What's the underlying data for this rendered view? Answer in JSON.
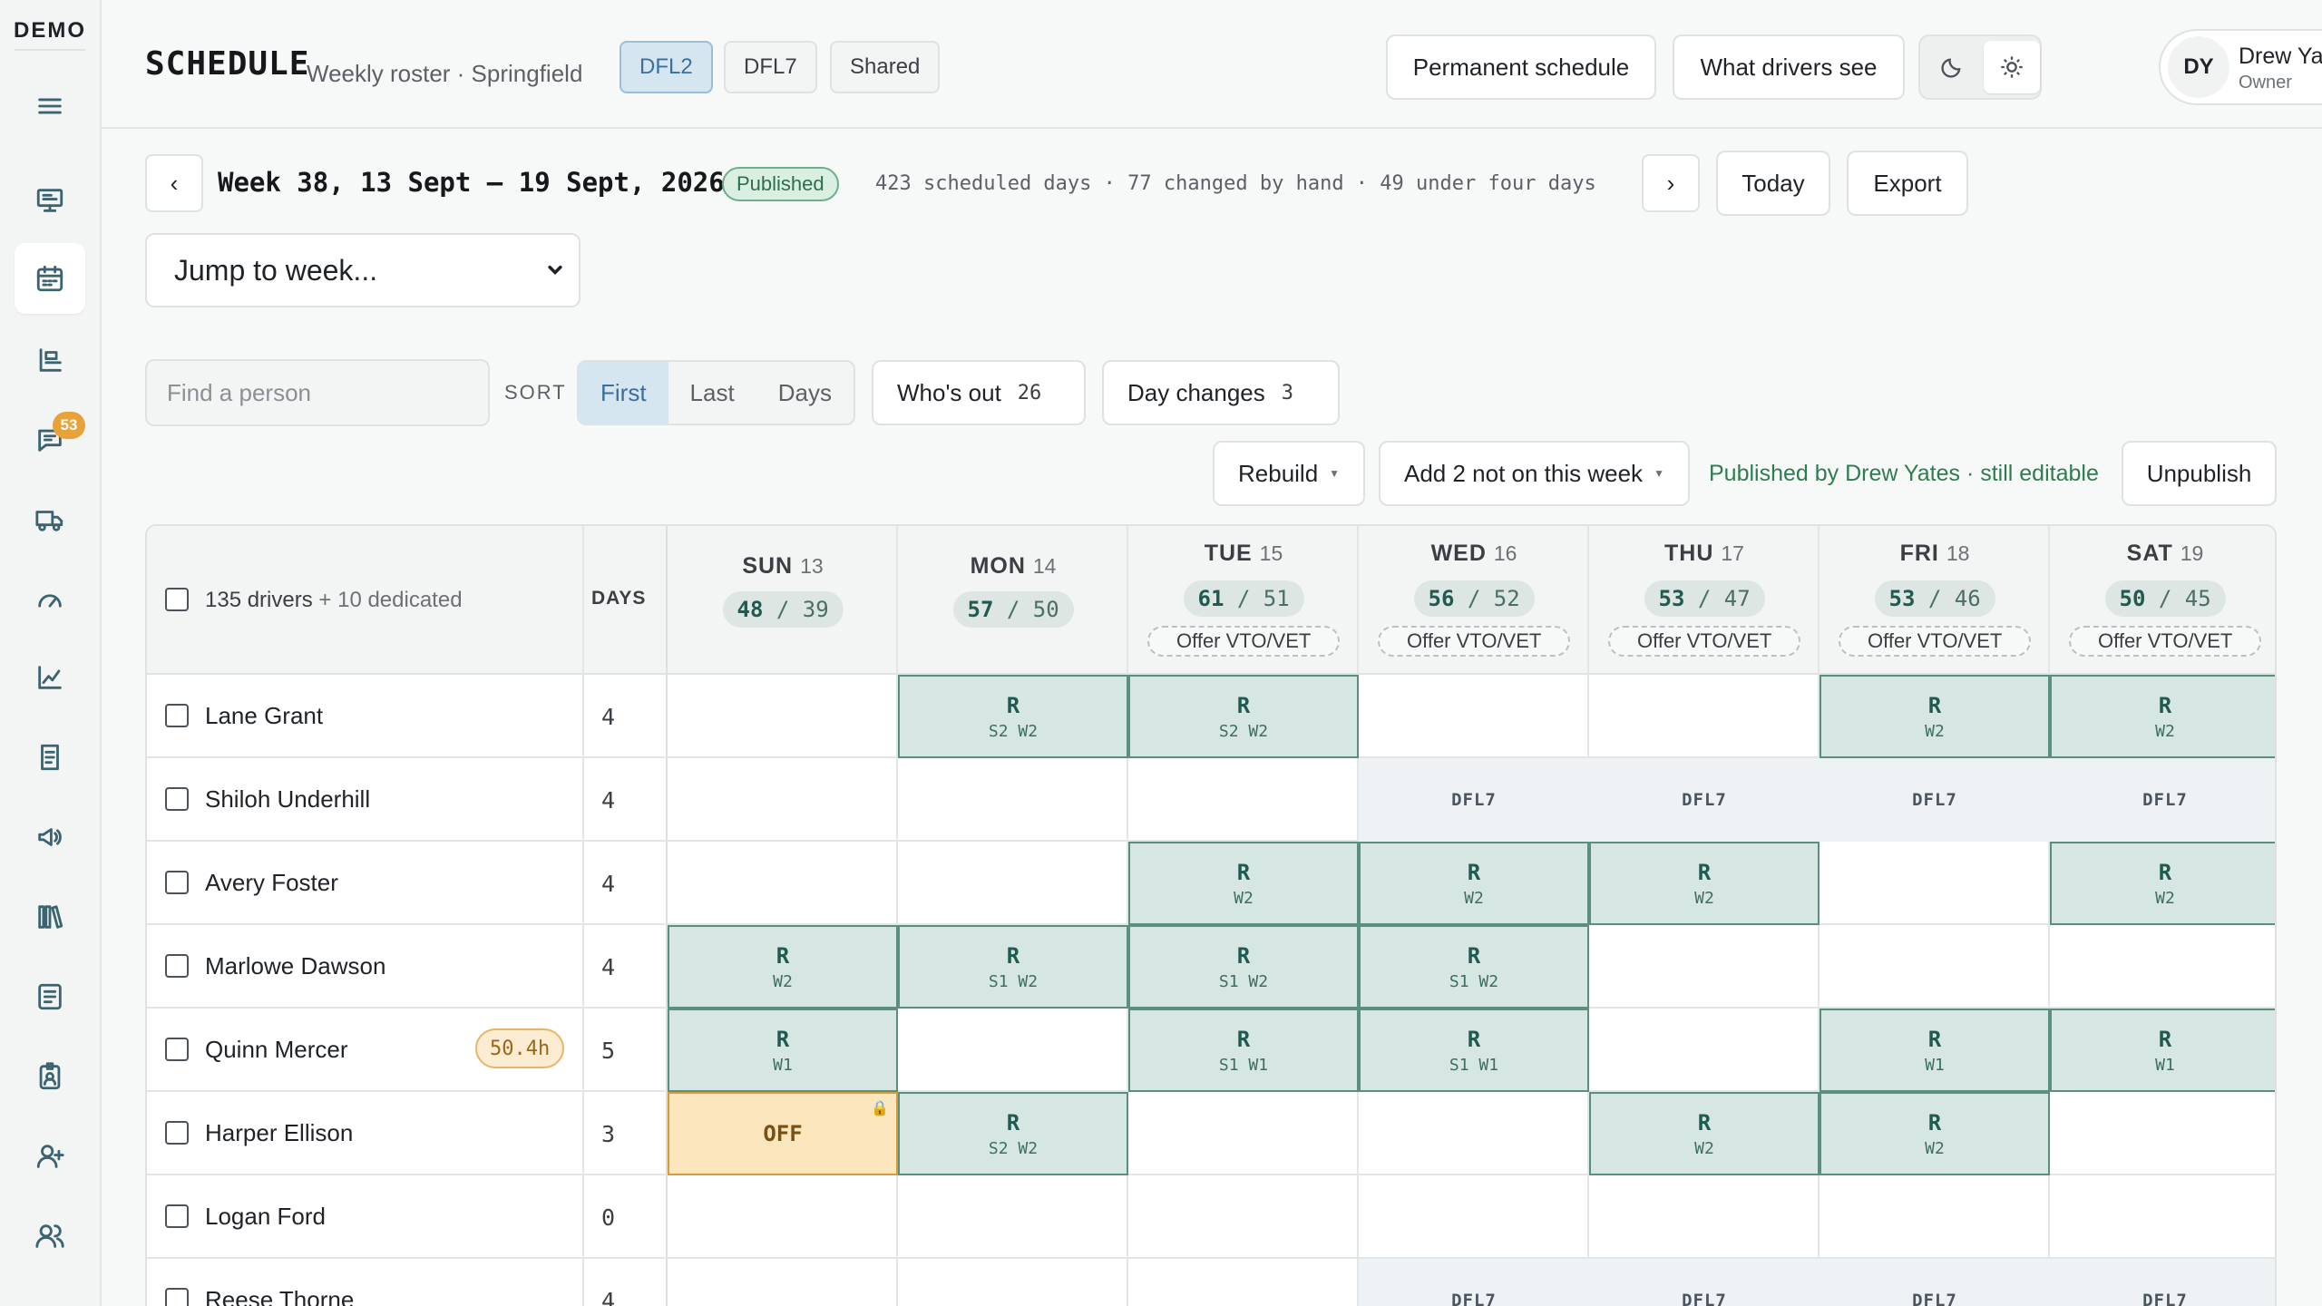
{
  "sidebar": {
    "brand": "DEMO",
    "items": [
      {
        "icon": "menu-icon"
      },
      {
        "icon": "monitor-icon"
      },
      {
        "icon": "calendar-icon",
        "active": true
      },
      {
        "icon": "roster-icon"
      },
      {
        "icon": "chat-icon",
        "badge": "53"
      },
      {
        "icon": "truck-icon"
      },
      {
        "icon": "gauge-icon"
      },
      {
        "icon": "trend-chart-icon"
      },
      {
        "icon": "invoice-icon"
      },
      {
        "icon": "megaphone-icon"
      },
      {
        "icon": "library-icon"
      },
      {
        "icon": "checklist-icon"
      },
      {
        "icon": "badge-icon"
      },
      {
        "icon": "add-user-icon"
      },
      {
        "icon": "users-icon"
      }
    ]
  },
  "header": {
    "title": "SCHEDULE",
    "subtitle": "Weekly roster · Springfield",
    "stations": [
      {
        "label": "DFL2",
        "active": true
      },
      {
        "label": "DFL7",
        "active": false
      },
      {
        "label": "Shared",
        "active": false
      }
    ],
    "permanent_schedule": "Permanent schedule",
    "what_drivers_see": "What drivers see",
    "user": {
      "initials": "DY",
      "name": "Drew Yates",
      "role": "Owner"
    }
  },
  "week": {
    "prev": "‹",
    "next": "›",
    "title": "Week 38, 13 Sept – 19 Sept, 2026",
    "status": "Published",
    "stats": "423 scheduled days · 77 changed by hand · 49 under four days",
    "today": "Today",
    "export": "Export",
    "jump": "Jump to week..."
  },
  "filters": {
    "search_placeholder": "Find a person",
    "sort_label": "SORT",
    "sort_options": [
      {
        "label": "First",
        "active": true
      },
      {
        "label": "Last",
        "active": false
      },
      {
        "label": "Days",
        "active": false
      }
    ],
    "whos_out": {
      "label": "Who's out",
      "count": "26"
    },
    "day_changes": {
      "label": "Day changes",
      "count": "3"
    }
  },
  "actions": {
    "rebuild": "Rebuild",
    "add_not_on_week": "Add 2 not on this week",
    "published_note": "Published by Drew Yates · still editable",
    "unpublish": "Unpublish"
  },
  "grid": {
    "drivers_label": "135 drivers",
    "drivers_extra": "+ 10 dedicated",
    "days_header": "DAYS",
    "days": [
      {
        "name": "SUN",
        "num": "13",
        "ratio_a": "48",
        "ratio_b": "39",
        "offer": ""
      },
      {
        "name": "MON",
        "num": "14",
        "ratio_a": "57",
        "ratio_b": "50",
        "offer": ""
      },
      {
        "name": "TUE",
        "num": "15",
        "ratio_a": "61",
        "ratio_b": "51",
        "offer": "Offer VTO/VET"
      },
      {
        "name": "WED",
        "num": "16",
        "ratio_a": "56",
        "ratio_b": "52",
        "offer": "Offer VTO/VET"
      },
      {
        "name": "THU",
        "num": "17",
        "ratio_a": "53",
        "ratio_b": "47",
        "offer": "Offer VTO/VET"
      },
      {
        "name": "FRI",
        "num": "18",
        "ratio_a": "53",
        "ratio_b": "46",
        "offer": "Offer VTO/VET"
      },
      {
        "name": "SAT",
        "num": "19",
        "ratio_a": "50",
        "ratio_b": "45",
        "offer": "Offer VTO/VET"
      }
    ],
    "rows": [
      {
        "name": "Lane Grant",
        "days": "4",
        "hours": "",
        "cells": [
          null,
          {
            "type": "r",
            "code": "R",
            "sub": "S2 W2"
          },
          {
            "type": "r",
            "code": "R",
            "sub": "S2 W2"
          },
          null,
          null,
          {
            "type": "r",
            "code": "R",
            "sub": "W2"
          },
          {
            "type": "r",
            "code": "R",
            "sub": "W2"
          }
        ]
      },
      {
        "name": "Shiloh Underhill",
        "days": "4",
        "hours": "",
        "cells": [
          null,
          null,
          null,
          {
            "type": "other",
            "code": "DFL7"
          },
          {
            "type": "other",
            "code": "DFL7"
          },
          {
            "type": "other",
            "code": "DFL7"
          },
          {
            "type": "other",
            "code": "DFL7"
          }
        ]
      },
      {
        "name": "Avery Foster",
        "days": "4",
        "hours": "",
        "cells": [
          null,
          null,
          {
            "type": "r",
            "code": "R",
            "sub": "W2"
          },
          {
            "type": "r",
            "code": "R",
            "sub": "W2"
          },
          {
            "type": "r",
            "code": "R",
            "sub": "W2"
          },
          null,
          {
            "type": "r",
            "code": "R",
            "sub": "W2"
          }
        ]
      },
      {
        "name": "Marlowe Dawson",
        "days": "4",
        "hours": "",
        "cells": [
          {
            "type": "r",
            "code": "R",
            "sub": "W2"
          },
          {
            "type": "r",
            "code": "R",
            "sub": "S1 W2"
          },
          {
            "type": "r",
            "code": "R",
            "sub": "S1 W2"
          },
          {
            "type": "r",
            "code": "R",
            "sub": "S1 W2"
          },
          null,
          null,
          null
        ]
      },
      {
        "name": "Quinn Mercer",
        "days": "5",
        "hours": "50.4h",
        "cells": [
          {
            "type": "r",
            "code": "R",
            "sub": "W1"
          },
          null,
          {
            "type": "r",
            "code": "R",
            "sub": "S1 W1"
          },
          {
            "type": "r",
            "code": "R",
            "sub": "S1 W1"
          },
          null,
          {
            "type": "r",
            "code": "R",
            "sub": "W1"
          },
          {
            "type": "r",
            "code": "R",
            "sub": "W1"
          }
        ]
      },
      {
        "name": "Harper Ellison",
        "days": "3",
        "hours": "",
        "cells": [
          {
            "type": "off",
            "code": "OFF",
            "locked": true
          },
          {
            "type": "r",
            "code": "R",
            "sub": "S2 W2"
          },
          null,
          null,
          {
            "type": "r",
            "code": "R",
            "sub": "W2"
          },
          {
            "type": "r",
            "code": "R",
            "sub": "W2"
          },
          null
        ]
      },
      {
        "name": "Logan Ford",
        "days": "0",
        "hours": "",
        "cells": [
          null,
          null,
          null,
          null,
          null,
          null,
          null
        ]
      },
      {
        "name": "Reese Thorne",
        "days": "4",
        "hours": "",
        "cells": [
          null,
          null,
          null,
          {
            "type": "other",
            "code": "DFL7"
          },
          {
            "type": "other",
            "code": "DFL7"
          },
          {
            "type": "other",
            "code": "DFL7"
          },
          {
            "type": "other",
            "code": "DFL7"
          }
        ]
      }
    ]
  },
  "colors": {
    "accent": "#3a6f9e",
    "route_fill": "#d6e6e2",
    "route_border": "#5a8f80",
    "off_fill": "#fbe6bd",
    "published": "#2e7d4f"
  }
}
